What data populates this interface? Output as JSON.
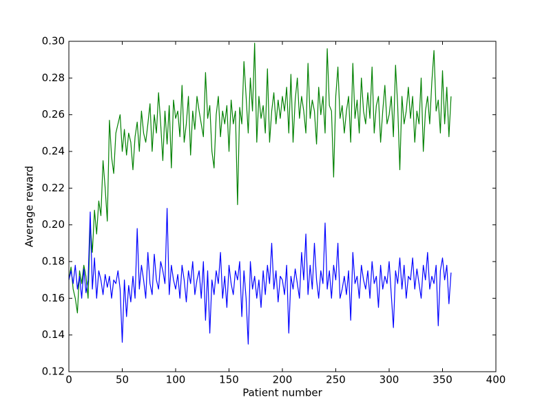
{
  "chart_data": {
    "type": "line",
    "x_label": "Patient number",
    "y_label": "Average reward",
    "x": [
      0,
      2,
      4,
      6,
      8,
      10,
      12,
      14,
      16,
      18,
      20,
      22,
      24,
      26,
      28,
      30,
      32,
      34,
      36,
      38,
      40,
      42,
      44,
      46,
      48,
      50,
      52,
      54,
      56,
      58,
      60,
      62,
      64,
      66,
      68,
      70,
      72,
      74,
      76,
      78,
      80,
      82,
      84,
      86,
      88,
      90,
      92,
      94,
      96,
      98,
      100,
      102,
      104,
      106,
      108,
      110,
      112,
      114,
      116,
      118,
      120,
      122,
      124,
      126,
      128,
      130,
      132,
      134,
      136,
      138,
      140,
      142,
      144,
      146,
      148,
      150,
      152,
      154,
      156,
      158,
      160,
      162,
      164,
      166,
      168,
      170,
      172,
      174,
      176,
      178,
      180,
      182,
      184,
      186,
      188,
      190,
      192,
      194,
      196,
      198,
      200,
      202,
      204,
      206,
      208,
      210,
      212,
      214,
      216,
      218,
      220,
      222,
      224,
      226,
      228,
      230,
      232,
      234,
      236,
      238,
      240,
      242,
      244,
      246,
      248,
      250,
      252,
      254,
      256,
      258,
      260,
      262,
      264,
      266,
      268,
      270,
      272,
      274,
      276,
      278,
      280,
      282,
      284,
      286,
      288,
      290,
      292,
      294,
      296,
      298,
      300,
      302,
      304,
      306,
      308,
      310,
      312,
      314,
      316,
      318,
      320,
      322,
      324,
      326,
      328,
      330,
      332,
      334,
      336,
      338,
      340,
      342,
      344,
      346,
      348,
      350,
      352,
      354,
      356,
      358
    ],
    "series": [
      {
        "color": "#008000",
        "values": [
          0.17,
          0.177,
          0.165,
          0.16,
          0.152,
          0.175,
          0.168,
          0.178,
          0.172,
          0.16,
          0.2,
          0.185,
          0.208,
          0.195,
          0.213,
          0.205,
          0.235,
          0.22,
          0.202,
          0.257,
          0.237,
          0.228,
          0.25,
          0.255,
          0.26,
          0.24,
          0.252,
          0.238,
          0.25,
          0.245,
          0.23,
          0.248,
          0.256,
          0.24,
          0.262,
          0.25,
          0.245,
          0.255,
          0.266,
          0.24,
          0.26,
          0.25,
          0.272,
          0.255,
          0.235,
          0.262,
          0.244,
          0.265,
          0.231,
          0.268,
          0.258,
          0.262,
          0.248,
          0.276,
          0.245,
          0.255,
          0.27,
          0.238,
          0.262,
          0.252,
          0.27,
          0.262,
          0.255,
          0.248,
          0.283,
          0.258,
          0.265,
          0.24,
          0.231,
          0.26,
          0.27,
          0.248,
          0.262,
          0.255,
          0.265,
          0.24,
          0.268,
          0.255,
          0.262,
          0.211,
          0.264,
          0.255,
          0.289,
          0.27,
          0.25,
          0.28,
          0.262,
          0.299,
          0.245,
          0.27,
          0.258,
          0.265,
          0.25,
          0.285,
          0.245,
          0.262,
          0.272,
          0.255,
          0.268,
          0.258,
          0.27,
          0.262,
          0.275,
          0.25,
          0.282,
          0.245,
          0.268,
          0.28,
          0.258,
          0.27,
          0.262,
          0.25,
          0.288,
          0.258,
          0.268,
          0.262,
          0.244,
          0.275,
          0.26,
          0.27,
          0.25,
          0.296,
          0.265,
          0.262,
          0.226,
          0.27,
          0.286,
          0.258,
          0.265,
          0.25,
          0.262,
          0.27,
          0.245,
          0.288,
          0.258,
          0.268,
          0.25,
          0.28,
          0.262,
          0.255,
          0.272,
          0.258,
          0.286,
          0.25,
          0.265,
          0.27,
          0.245,
          0.262,
          0.276,
          0.255,
          0.26,
          0.27,
          0.248,
          0.287,
          0.265,
          0.23,
          0.27,
          0.255,
          0.262,
          0.275,
          0.258,
          0.27,
          0.245,
          0.262,
          0.255,
          0.28,
          0.24,
          0.262,
          0.27,
          0.255,
          0.278,
          0.295,
          0.262,
          0.268,
          0.25,
          0.284,
          0.255,
          0.275,
          0.248,
          0.27
        ]
      },
      {
        "color": "#0000ff",
        "values": [
          0.17,
          0.175,
          0.168,
          0.178,
          0.165,
          0.172,
          0.16,
          0.176,
          0.163,
          0.17,
          0.207,
          0.165,
          0.182,
          0.16,
          0.175,
          0.17,
          0.162,
          0.173,
          0.166,
          0.172,
          0.16,
          0.17,
          0.168,
          0.175,
          0.165,
          0.136,
          0.17,
          0.15,
          0.167,
          0.158,
          0.172,
          0.16,
          0.198,
          0.165,
          0.178,
          0.17,
          0.16,
          0.185,
          0.168,
          0.162,
          0.184,
          0.17,
          0.165,
          0.18,
          0.175,
          0.168,
          0.209,
          0.162,
          0.178,
          0.17,
          0.165,
          0.173,
          0.16,
          0.178,
          0.17,
          0.158,
          0.175,
          0.168,
          0.18,
          0.162,
          0.17,
          0.175,
          0.16,
          0.18,
          0.148,
          0.175,
          0.141,
          0.17,
          0.162,
          0.175,
          0.168,
          0.185,
          0.16,
          0.172,
          0.155,
          0.178,
          0.168,
          0.162,
          0.175,
          0.17,
          0.18,
          0.15,
          0.175,
          0.16,
          0.135,
          0.18,
          0.165,
          0.172,
          0.16,
          0.17,
          0.155,
          0.175,
          0.162,
          0.178,
          0.168,
          0.19,
          0.165,
          0.175,
          0.158,
          0.172,
          0.17,
          0.162,
          0.178,
          0.141,
          0.172,
          0.165,
          0.176,
          0.168,
          0.16,
          0.185,
          0.17,
          0.195,
          0.162,
          0.178,
          0.165,
          0.19,
          0.17,
          0.16,
          0.175,
          0.168,
          0.201,
          0.165,
          0.175,
          0.16,
          0.178,
          0.17,
          0.19,
          0.16,
          0.165,
          0.172,
          0.162,
          0.175,
          0.148,
          0.185,
          0.168,
          0.172,
          0.16,
          0.178,
          0.17,
          0.165,
          0.175,
          0.16,
          0.18,
          0.168,
          0.172,
          0.155,
          0.178,
          0.165,
          0.172,
          0.168,
          0.18,
          0.162,
          0.144,
          0.175,
          0.168,
          0.182,
          0.165,
          0.178,
          0.16,
          0.172,
          0.17,
          0.182,
          0.165,
          0.176,
          0.168,
          0.16,
          0.178,
          0.17,
          0.185,
          0.165,
          0.172,
          0.168,
          0.178,
          0.145,
          0.175,
          0.182,
          0.17,
          0.178,
          0.157,
          0.174
        ]
      }
    ],
    "xlim": [
      0,
      400
    ],
    "xticks": [
      0,
      50,
      100,
      150,
      200,
      250,
      300,
      350,
      400
    ],
    "ylim": [
      0.12,
      0.3
    ],
    "yticks": [
      0.12,
      0.14,
      0.16,
      0.18,
      {
        "value": 0.2,
        "label": "0.20"
      },
      0.22,
      0.24,
      0.26,
      0.28,
      {
        "value": 0.3,
        "label": "0.30"
      }
    ],
    "grid": false
  }
}
